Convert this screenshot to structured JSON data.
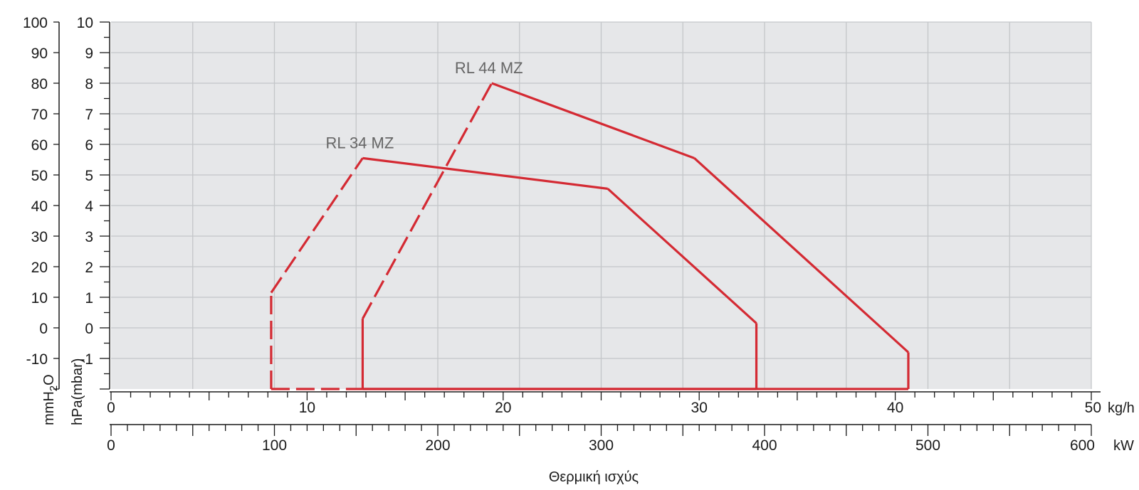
{
  "chart_data": {
    "type": "line",
    "title": "",
    "xlabel": "Θερμική ισχύς",
    "axes": {
      "x_kgh": {
        "range": [
          0,
          50
        ],
        "unit": "kg/h",
        "tick_labels": [
          "0",
          "10",
          "20",
          "30",
          "40",
          "50"
        ]
      },
      "x_kw": {
        "range": [
          0,
          600
        ],
        "unit": "kW",
        "tick_labels": [
          "0",
          "100",
          "200",
          "300",
          "400",
          "500",
          "600"
        ]
      },
      "y_mbar": {
        "range": [
          -2,
          10
        ],
        "unit": "hPa(mbar)",
        "tick_labels": [
          "-1",
          "0",
          "1",
          "2",
          "3",
          "4",
          "5",
          "6",
          "7",
          "8",
          "9",
          "10"
        ]
      },
      "y_mmH2O": {
        "unit": "mmH2O",
        "unit_sub": "2",
        "unit_pre": "mmH",
        "unit_post": "O",
        "tick_labels": [
          "-10",
          "0",
          "10",
          "20",
          "30",
          "40",
          "50",
          "60",
          "70",
          "80",
          "90",
          "100"
        ]
      }
    },
    "grid": true,
    "colors": {
      "plot_bg": "#e6e7e9",
      "grid": "#c4c6c9",
      "series": "#d42a33",
      "label": "#666666",
      "axis": "#1a1a1a"
    },
    "series": [
      {
        "name": "RL 34 MZ",
        "points_kw_mbar": [
          [
            98,
            -2
          ],
          [
            98,
            1.15
          ],
          [
            154,
            5.55
          ],
          [
            304,
            4.55
          ],
          [
            395,
            0.15
          ],
          [
            395,
            -2
          ]
        ],
        "dashed_segments": [
          0,
          1
        ],
        "base_solid_from_kw": 154
      },
      {
        "name": "RL 44 MZ",
        "points_kw_mbar": [
          [
            154,
            -2
          ],
          [
            154,
            0.3
          ],
          [
            233,
            8
          ],
          [
            357,
            5.55
          ],
          [
            488,
            -0.8
          ],
          [
            488,
            -2
          ]
        ],
        "dashed_segments": [
          1
        ],
        "base_solid_from_kw": 154
      }
    ]
  }
}
